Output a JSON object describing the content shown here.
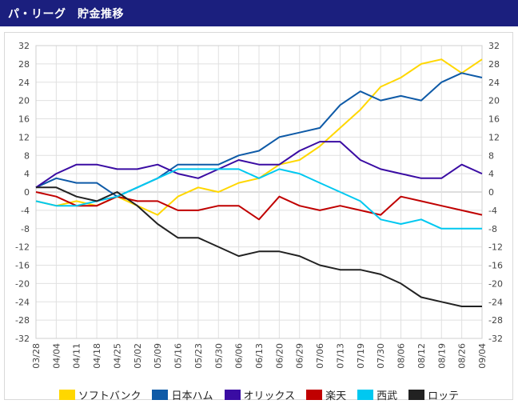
{
  "header": {
    "title": "パ・リーグ　貯金推移"
  },
  "chart_data": {
    "type": "line",
    "title": "",
    "xlabel": "",
    "ylabel": "",
    "ylim": [
      -32,
      32
    ],
    "yticks": [
      32,
      28,
      24,
      20,
      16,
      12,
      8,
      4,
      0,
      -4,
      -8,
      -12,
      -16,
      -20,
      -24,
      -28,
      -32
    ],
    "grid": true,
    "legend_position": "bottom",
    "categories": [
      "03/28",
      "04/04",
      "04/11",
      "04/18",
      "04/25",
      "05/02",
      "05/09",
      "05/16",
      "05/23",
      "05/30",
      "06/06",
      "06/13",
      "06/20",
      "06/29",
      "07/06",
      "07/13",
      "07/19",
      "07/30",
      "08/06",
      "08/12",
      "08/19",
      "08/26",
      "09/04"
    ],
    "series": [
      {
        "name": "ソフトバンク",
        "color": "#ffd700",
        "values": [
          -2,
          -3,
          -2,
          -3,
          -1,
          -3,
          -5,
          -1,
          1,
          0,
          2,
          3,
          6,
          7,
          10,
          14,
          18,
          23,
          25,
          28,
          29,
          26,
          29
        ]
      },
      {
        "name": "日本ハム",
        "color": "#0e5aa7",
        "values": [
          1,
          3,
          2,
          2,
          -1,
          1,
          3,
          6,
          6,
          6,
          8,
          9,
          12,
          13,
          14,
          19,
          22,
          20,
          21,
          20,
          24,
          26,
          25
        ]
      },
      {
        "name": "オリックス",
        "color": "#3a0ca3",
        "values": [
          1,
          4,
          6,
          6,
          5,
          5,
          6,
          4,
          3,
          5,
          7,
          6,
          6,
          9,
          11,
          11,
          7,
          5,
          4,
          3,
          3,
          6,
          4
        ]
      },
      {
        "name": "楽天",
        "color": "#c00000",
        "values": [
          0,
          -1,
          -3,
          -3,
          -1,
          -2,
          -2,
          -4,
          -4,
          -3,
          -3,
          -6,
          -1,
          -3,
          -4,
          -3,
          -4,
          -5,
          -1,
          -2,
          -3,
          -4,
          -5
        ]
      },
      {
        "name": "西武",
        "color": "#00c8f0",
        "values": [
          -2,
          -3,
          -3,
          -2,
          -1,
          1,
          3,
          5,
          5,
          5,
          5,
          3,
          5,
          4,
          2,
          0,
          -2,
          -6,
          -7,
          -6,
          -8,
          -8,
          -8
        ]
      },
      {
        "name": "ロッテ",
        "color": "#222222",
        "values": [
          1,
          1,
          -1,
          -2,
          0,
          -3,
          -7,
          -10,
          -10,
          -12,
          -14,
          -13,
          -13,
          -14,
          -16,
          -17,
          -17,
          -18,
          -20,
          -23,
          -24,
          -25,
          -25
        ]
      }
    ]
  }
}
